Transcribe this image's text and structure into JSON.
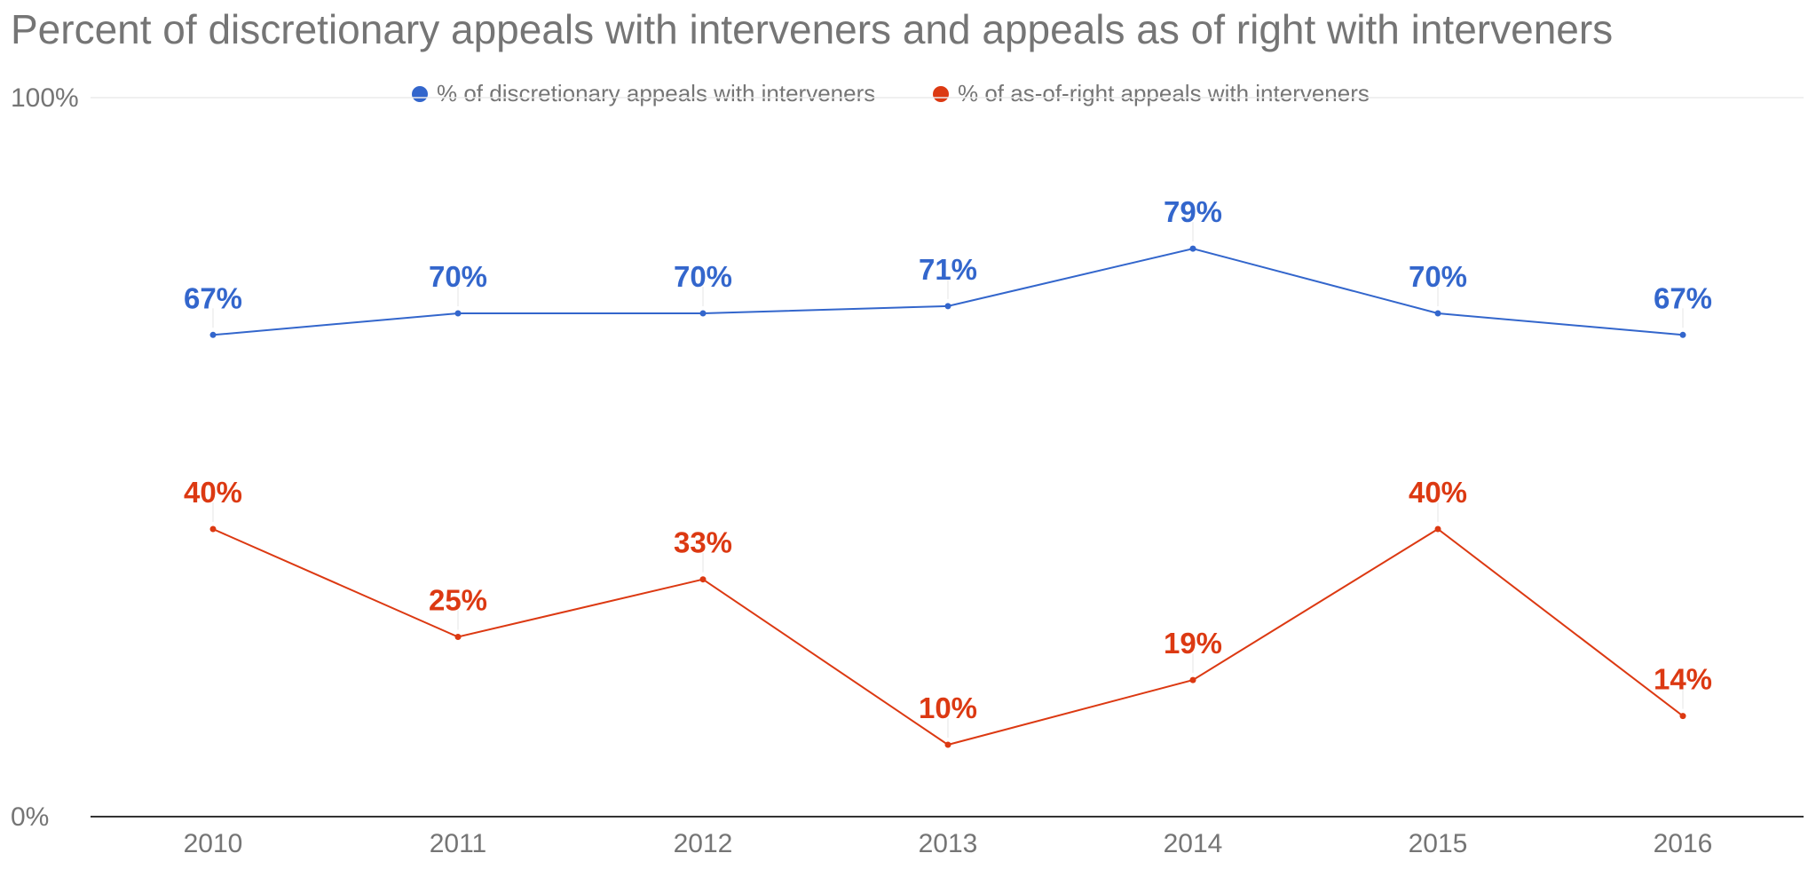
{
  "chart_data": {
    "type": "line",
    "title": "Percent of discretionary appeals with interveners and appeals as of right with interveners",
    "x": [
      "2010",
      "2011",
      "2012",
      "2013",
      "2014",
      "2015",
      "2016"
    ],
    "series": [
      {
        "name": "% of discretionary appeals with interveners",
        "color": "#3366cc",
        "values": [
          67,
          70,
          70,
          71,
          79,
          70,
          67
        ],
        "labels": [
          "67%",
          "70%",
          "70%",
          "71%",
          "79%",
          "70%",
          "67%"
        ]
      },
      {
        "name": "% of as-of-right appeals with interveners",
        "color": "#dc3912",
        "values": [
          40,
          25,
          33,
          10,
          19,
          40,
          14
        ],
        "labels": [
          "40%",
          "25%",
          "33%",
          "10%",
          "19%",
          "40%",
          "14%"
        ]
      }
    ],
    "ylim": [
      0,
      100
    ],
    "y_ticks": [
      "0%",
      "100%"
    ],
    "xlabel": "",
    "ylabel": "",
    "legend_position": "top",
    "grid": true
  }
}
